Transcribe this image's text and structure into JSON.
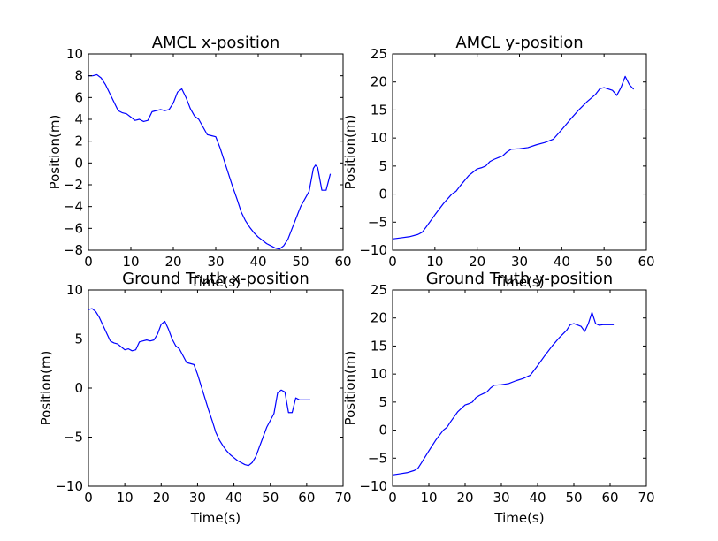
{
  "chart_data": [
    {
      "type": "line",
      "title": "AMCL x-position",
      "xlabel": "Time(s)",
      "ylabel": "Position(m)",
      "xlim": [
        0,
        60
      ],
      "ylim": [
        -8,
        10
      ],
      "xticks": [
        0,
        10,
        20,
        30,
        40,
        50,
        60
      ],
      "yticks": [
        -8,
        -6,
        -4,
        -2,
        0,
        2,
        4,
        6,
        8,
        10
      ],
      "grid": false,
      "color": "#0000ff",
      "series": [
        {
          "x": [
            0,
            1,
            2,
            3,
            4,
            5,
            6,
            7,
            8,
            9,
            10,
            11,
            12,
            13,
            14,
            15,
            16,
            17,
            18,
            19,
            20,
            21,
            22,
            23,
            24,
            25,
            26,
            27,
            28,
            29,
            30,
            31,
            32,
            33,
            34,
            35,
            36,
            37,
            38,
            39,
            40,
            41,
            42,
            43,
            44,
            45,
            46,
            47,
            48,
            49,
            50,
            51,
            52,
            53,
            53.5,
            54,
            55,
            56,
            57
          ],
          "y": [
            8,
            8,
            8.1,
            7.8,
            7.2,
            6.4,
            5.6,
            4.8,
            4.6,
            4.5,
            4.2,
            3.9,
            4.0,
            3.8,
            3.9,
            4.7,
            4.8,
            4.9,
            4.8,
            4.9,
            5.5,
            6.5,
            6.8,
            6.0,
            5.0,
            4.3,
            4.0,
            3.3,
            2.6,
            2.5,
            2.4,
            1.4,
            0.2,
            -1.0,
            -2.2,
            -3.3,
            -4.5,
            -5.3,
            -5.9,
            -6.4,
            -6.8,
            -7.1,
            -7.4,
            -7.6,
            -7.8,
            -7.9,
            -7.6,
            -7.0,
            -6.0,
            -5.0,
            -4.0,
            -3.3,
            -2.6,
            -0.5,
            -0.2,
            -0.4,
            -2.5,
            -2.5,
            -1.0
          ]
        }
      ]
    },
    {
      "type": "line",
      "title": "AMCL y-position",
      "xlabel": "Time(s)",
      "ylabel": "Position(m)",
      "xlim": [
        0,
        60
      ],
      "ylim": [
        -10,
        25
      ],
      "xticks": [
        0,
        10,
        20,
        30,
        40,
        50,
        60
      ],
      "yticks": [
        -10,
        -5,
        0,
        5,
        10,
        15,
        20,
        25
      ],
      "grid": false,
      "color": "#0000ff",
      "series": [
        {
          "x": [
            0,
            2,
            4,
            6,
            7,
            8,
            10,
            12,
            14,
            15,
            16,
            18,
            20,
            21,
            22,
            23,
            24,
            25,
            26,
            27,
            28,
            30,
            32,
            34,
            36,
            38,
            40,
            42,
            44,
            46,
            48,
            49,
            50,
            52,
            53,
            54,
            55,
            56,
            57
          ],
          "y": [
            -8,
            -7.8,
            -7.6,
            -7.2,
            -6.8,
            -5.8,
            -3.7,
            -1.7,
            0,
            0.5,
            1.5,
            3.3,
            4.5,
            4.7,
            5.0,
            5.8,
            6.2,
            6.5,
            6.8,
            7.5,
            8.0,
            8.1,
            8.3,
            8.8,
            9.2,
            9.8,
            11.5,
            13.3,
            15.0,
            16.5,
            17.8,
            18.8,
            19.0,
            18.5,
            17.6,
            19.0,
            21.0,
            19.5,
            18.7
          ]
        }
      ]
    },
    {
      "type": "line",
      "title": "Ground Truth x-position",
      "xlabel": "Time(s)",
      "ylabel": "Position(m)",
      "xlim": [
        0,
        70
      ],
      "ylim": [
        -10,
        10
      ],
      "xticks": [
        0,
        10,
        20,
        30,
        40,
        50,
        60,
        70
      ],
      "yticks": [
        -10,
        -5,
        0,
        5,
        10
      ],
      "grid": false,
      "color": "#0000ff",
      "series": [
        {
          "x": [
            0,
            1,
            2,
            3,
            4,
            5,
            6,
            7,
            8,
            9,
            10,
            11,
            12,
            13,
            14,
            15,
            16,
            17,
            18,
            19,
            20,
            21,
            22,
            23,
            24,
            25,
            26,
            27,
            28,
            29,
            30,
            31,
            32,
            33,
            34,
            35,
            36,
            37,
            38,
            39,
            40,
            41,
            42,
            43,
            44,
            45,
            46,
            47,
            48,
            49,
            50,
            51,
            52,
            53,
            54,
            55,
            56,
            57,
            58,
            59,
            60,
            61
          ],
          "y": [
            8,
            8.1,
            7.8,
            7.2,
            6.4,
            5.6,
            4.8,
            4.6,
            4.5,
            4.2,
            3.9,
            4.0,
            3.8,
            3.9,
            4.7,
            4.8,
            4.9,
            4.8,
            4.9,
            5.5,
            6.5,
            6.8,
            6.0,
            5.0,
            4.3,
            4.0,
            3.3,
            2.6,
            2.5,
            2.4,
            1.4,
            0.2,
            -1.0,
            -2.2,
            -3.3,
            -4.5,
            -5.3,
            -5.9,
            -6.4,
            -6.8,
            -7.1,
            -7.4,
            -7.6,
            -7.8,
            -7.9,
            -7.6,
            -7.0,
            -6.0,
            -5.0,
            -4.0,
            -3.3,
            -2.6,
            -0.5,
            -0.2,
            -0.4,
            -2.5,
            -2.5,
            -1.0,
            -1.2,
            -1.2,
            -1.2,
            -1.2
          ]
        }
      ]
    },
    {
      "type": "line",
      "title": "Ground Truth y-position",
      "xlabel": "Time(s)",
      "ylabel": "Position(m)",
      "xlim": [
        0,
        70
      ],
      "ylim": [
        -10,
        25
      ],
      "xticks": [
        0,
        10,
        20,
        30,
        40,
        50,
        60,
        70
      ],
      "yticks": [
        -10,
        -5,
        0,
        5,
        10,
        15,
        20,
        25
      ],
      "grid": false,
      "color": "#0000ff",
      "series": [
        {
          "x": [
            0,
            2,
            4,
            6,
            7,
            8,
            10,
            12,
            14,
            15,
            16,
            18,
            20,
            21,
            22,
            23,
            24,
            25,
            26,
            27,
            28,
            30,
            32,
            34,
            36,
            38,
            40,
            42,
            44,
            46,
            48,
            49,
            50,
            52,
            53,
            54,
            55,
            56,
            57,
            58,
            61
          ],
          "y": [
            -8,
            -7.8,
            -7.6,
            -7.2,
            -6.8,
            -5.8,
            -3.7,
            -1.7,
            0,
            0.5,
            1.5,
            3.3,
            4.5,
            4.7,
            5.0,
            5.8,
            6.2,
            6.5,
            6.8,
            7.5,
            8.0,
            8.1,
            8.3,
            8.8,
            9.2,
            9.8,
            11.5,
            13.3,
            15.0,
            16.5,
            17.8,
            18.8,
            19.0,
            18.5,
            17.6,
            19.0,
            21.0,
            19.0,
            18.7,
            18.8,
            18.8
          ]
        }
      ]
    }
  ]
}
